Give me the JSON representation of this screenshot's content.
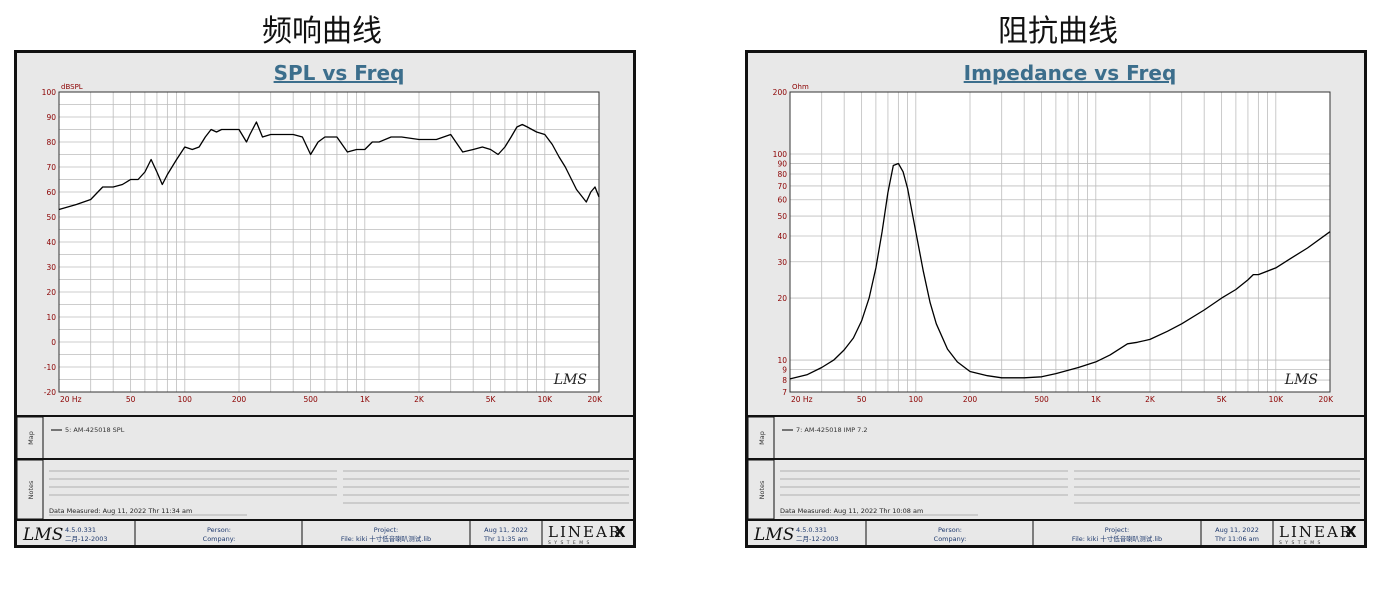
{
  "headings": {
    "left": "频响曲线",
    "right": "阻抗曲线"
  },
  "charts": [
    {
      "title": "SPL vs Freq",
      "ylabel": "dBSPL",
      "legend_label": "5: AM-425018 SPL",
      "notes_date": "Data Measured: Aug 11, 2022  Thr 11:34 am",
      "footer": {
        "logo": "LMS",
        "version": "4.5.0.331",
        "version_date": "二月-12-2003",
        "person_label": "Person:",
        "company_label": "Company:",
        "project_label": "Project:",
        "file_label": "File: kiki 十寸低音喇叭测试.lib",
        "date_line1": "Aug 11, 2022",
        "date_line2": "Thr 11:35 am",
        "brand": "LINEAR",
        "brand_x": "X",
        "brand_sub": "S Y S T E M S"
      },
      "watermark": "LMS",
      "side_map": "Map",
      "side_notes": "Notes"
    },
    {
      "title": "Impedance vs Freq",
      "ylabel": "Ohm",
      "legend_label": "7: AM-425018 IMP 7.2",
      "notes_date": "Data Measured: Aug 11, 2022  Thr 10:08 am",
      "footer": {
        "logo": "LMS",
        "version": "4.5.0.331",
        "version_date": "二月-12-2003",
        "person_label": "Person:",
        "company_label": "Company:",
        "project_label": "Project:",
        "file_label": "File: kiki 十寸低音喇叭测试.lib",
        "date_line1": "Aug 11, 2022",
        "date_line2": "Thr 11:06 am",
        "brand": "LINEAR",
        "brand_x": "X",
        "brand_sub": "S Y S T E M S"
      },
      "watermark": "LMS",
      "side_map": "Map",
      "side_notes": "Notes"
    }
  ],
  "chart_data": [
    {
      "type": "line",
      "title": "SPL vs Freq",
      "ylabel": "dBSPL",
      "xscale": "log",
      "xlim": [
        20,
        20000
      ],
      "ylim": [
        -20,
        100
      ],
      "grid": true,
      "x_ticks": [
        20,
        50,
        100,
        200,
        500,
        1000,
        2000,
        5000,
        10000,
        20000
      ],
      "x_tick_labels": [
        "20  Hz",
        "50",
        "100",
        "200",
        "500",
        "1K",
        "2K",
        "5K",
        "10K",
        "20K"
      ],
      "y_ticks": [
        -20,
        -10,
        0,
        10,
        20,
        30,
        40,
        50,
        60,
        70,
        80,
        90,
        100
      ],
      "y_tick_labels": [
        "-20",
        "-10",
        "0",
        "10",
        "20",
        "30",
        "40",
        "50",
        "60",
        "70",
        "80",
        "90",
        "100"
      ],
      "series": [
        {
          "name": "5: AM-425018 SPL",
          "color": "#000000",
          "x": [
            20,
            25,
            30,
            35,
            40,
            45,
            50,
            55,
            60,
            65,
            70,
            75,
            80,
            90,
            100,
            110,
            120,
            130,
            140,
            150,
            160,
            180,
            200,
            220,
            230,
            250,
            270,
            300,
            350,
            400,
            450,
            500,
            550,
            600,
            700,
            800,
            900,
            1000,
            1100,
            1200,
            1400,
            1600,
            2000,
            2500,
            3000,
            3500,
            4000,
            4500,
            5000,
            5500,
            6000,
            6500,
            7000,
            7500,
            8000,
            9000,
            10000,
            11000,
            12000,
            13000,
            15000,
            17000,
            18000,
            19000,
            20000
          ],
          "y": [
            53,
            55,
            57,
            62,
            62,
            63,
            65,
            65,
            68,
            73,
            68,
            63,
            67,
            73,
            78,
            77,
            78,
            82,
            85,
            84,
            85,
            85,
            85,
            80,
            83,
            88,
            82,
            83,
            83,
            83,
            82,
            75,
            80,
            82,
            82,
            76,
            77,
            77,
            80,
            80,
            82,
            82,
            81,
            81,
            83,
            76,
            77,
            78,
            77,
            75,
            78,
            82,
            86,
            87,
            86,
            84,
            83,
            79,
            74,
            70,
            61,
            56,
            60,
            62,
            58
          ]
        }
      ]
    },
    {
      "type": "line",
      "title": "Impedance vs Freq",
      "ylabel": "Ohm",
      "xscale": "log",
      "yscale": "log",
      "xlim": [
        20,
        20000
      ],
      "ylim": [
        7,
        200
      ],
      "grid": true,
      "x_ticks": [
        20,
        50,
        100,
        200,
        500,
        1000,
        2000,
        5000,
        10000,
        20000
      ],
      "x_tick_labels": [
        "20  Hz",
        "50",
        "100",
        "200",
        "500",
        "1K",
        "2K",
        "5K",
        "10K",
        "20K"
      ],
      "y_ticks": [
        7,
        8,
        9,
        10,
        20,
        30,
        40,
        50,
        60,
        70,
        80,
        90,
        100,
        200
      ],
      "y_tick_labels": [
        "7",
        "8",
        "9",
        "10",
        "20",
        "30",
        "40",
        "50",
        "60",
        "70",
        "80",
        "90",
        "100",
        "200"
      ],
      "series": [
        {
          "name": "7: AM-425018 IMP 7.2",
          "color": "#000000",
          "x": [
            20,
            25,
            30,
            35,
            40,
            45,
            50,
            55,
            60,
            65,
            70,
            75,
            80,
            85,
            90,
            100,
            110,
            120,
            130,
            150,
            170,
            200,
            250,
            300,
            400,
            500,
            600,
            800,
            1000,
            1200,
            1500,
            1700,
            2000,
            2500,
            3000,
            4000,
            5000,
            6000,
            7000,
            7500,
            8000,
            10000,
            12000,
            15000,
            20000
          ],
          "y": [
            8.1,
            8.5,
            9.2,
            10.0,
            11.2,
            12.8,
            15.5,
            20.0,
            28.0,
            42.0,
            65.0,
            88.0,
            90.0,
            82.0,
            68.0,
            42.0,
            27.0,
            19.0,
            15.0,
            11.3,
            9.8,
            8.8,
            8.4,
            8.2,
            8.2,
            8.3,
            8.6,
            9.2,
            9.8,
            10.6,
            12.0,
            12.2,
            12.6,
            13.8,
            15.0,
            17.5,
            20.0,
            22.0,
            24.5,
            26.0,
            26.0,
            28.0,
            31.0,
            35.0,
            42.0
          ]
        }
      ]
    }
  ]
}
